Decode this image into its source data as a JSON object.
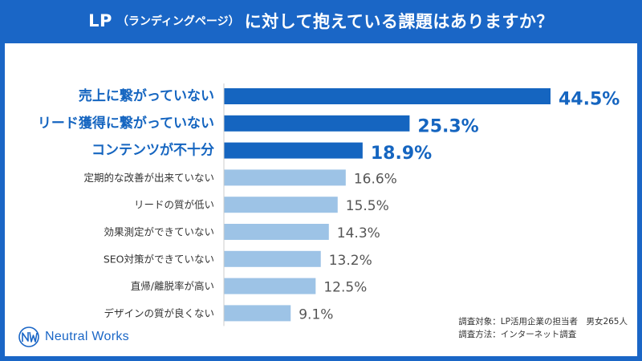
{
  "header": {
    "title_prefix": "LP",
    "title_paren": "（ランディングページ）",
    "title_suffix": "に対して抱えている課題はありますか？"
  },
  "chart_data": {
    "type": "bar",
    "orientation": "horizontal",
    "title": "LP（ランディングページ）に対して抱えている課題はありますか？",
    "unit": "%",
    "categories": [
      "売上に繋がっていない",
      "リード獲得に繋がっていない",
      "コンテンツが不十分",
      "定期的な改善が出来ていない",
      "リードの質が低い",
      "効果測定ができていない",
      "SEO対策ができていない",
      "直帰/離脱率が高い",
      "デザインの質が良くない"
    ],
    "values": [
      44.5,
      25.3,
      18.9,
      16.6,
      15.5,
      14.3,
      13.2,
      12.5,
      9.1
    ],
    "value_labels": [
      "44.5%",
      "25.3%",
      "18.9%",
      "16.6%",
      "15.5%",
      "14.3%",
      "13.2%",
      "12.5%",
      "9.1%"
    ],
    "highlight": [
      true,
      true,
      true,
      false,
      false,
      false,
      false,
      false,
      false
    ],
    "xlim": [
      0,
      50
    ],
    "colors": {
      "top": "#1565c0",
      "rest": "#9dc3e6",
      "top_label": "#1565c0",
      "rest_label": "#555555"
    }
  },
  "footer": {
    "survey_target": "調査対象：LP活用企業の担当者　男女265人",
    "survey_method": "調査方法：インターネット調査"
  },
  "logo": {
    "name": "Neutral Works",
    "icon": "neutral-works-logo-icon"
  }
}
